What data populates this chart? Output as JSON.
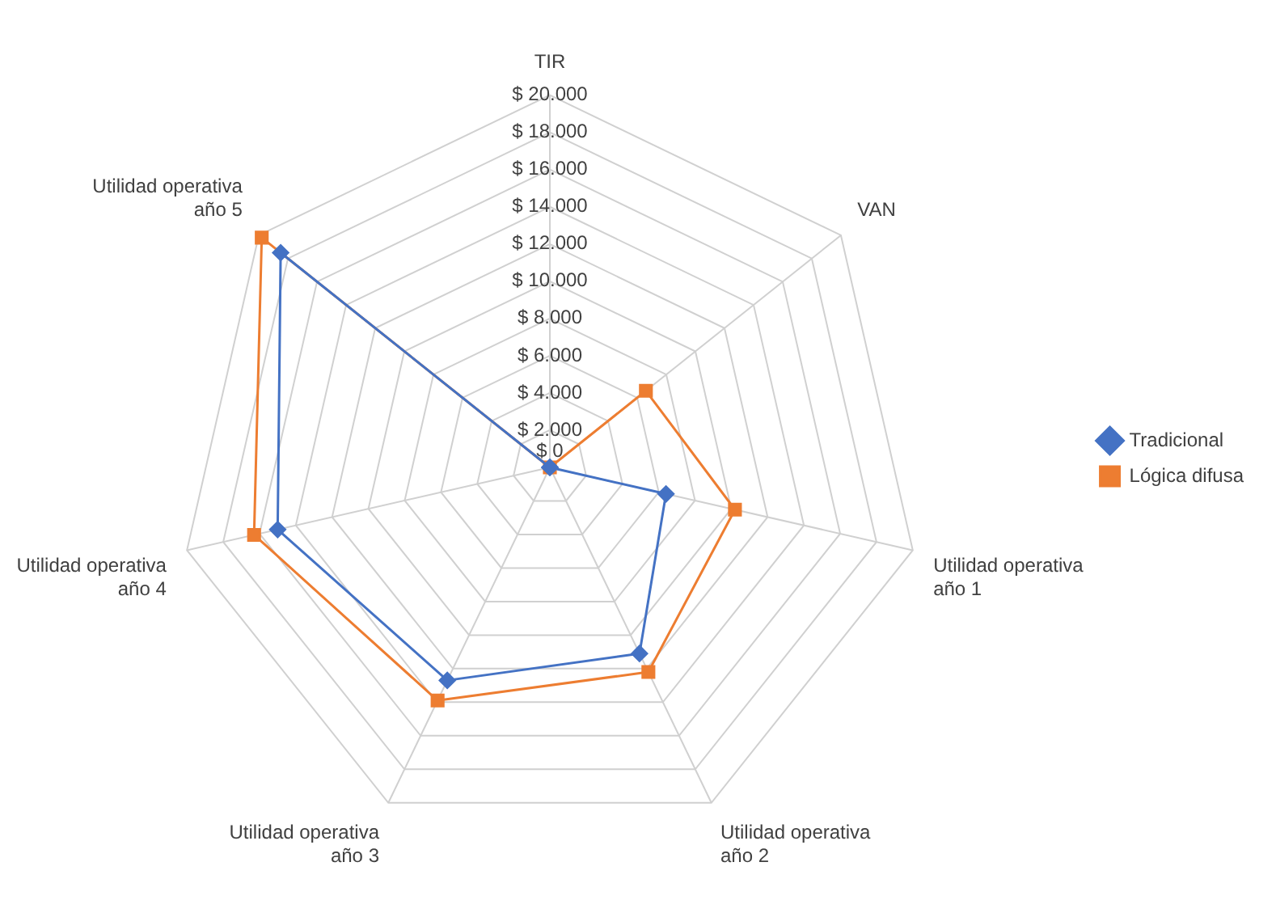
{
  "chart_data": {
    "type": "radar",
    "categories": [
      "TIR",
      "VAN",
      "Utilidad operativa año 1",
      "Utilidad operativa año 2",
      "Utilidad operativa año 3",
      "Utilidad operativa año 4",
      "Utilidad operativa año 5"
    ],
    "series": [
      {
        "name": "Tradicional",
        "color": "#4472c4",
        "marker": "diamond",
        "values": [
          0,
          0,
          6400,
          11100,
          12700,
          15000,
          18500
        ]
      },
      {
        "name": "Lógica difusa",
        "color": "#ed7d31",
        "marker": "square",
        "values": [
          0,
          6600,
          10200,
          12200,
          13900,
          16300,
          19800
        ]
      }
    ],
    "ylim": [
      0,
      20000
    ],
    "yticks": [
      {
        "value": 0,
        "label": "$ 0"
      },
      {
        "value": 2000,
        "label": "$ 2.000"
      },
      {
        "value": 4000,
        "label": "$ 4.000"
      },
      {
        "value": 6000,
        "label": "$ 6.000"
      },
      {
        "value": 8000,
        "label": "$ 8.000"
      },
      {
        "value": 10000,
        "label": "$ 10.000"
      },
      {
        "value": 12000,
        "label": "$ 12.000"
      },
      {
        "value": 14000,
        "label": "$ 14.000"
      },
      {
        "value": 16000,
        "label": "$ 16.000"
      },
      {
        "value": 18000,
        "label": "$ 18.000"
      },
      {
        "value": 20000,
        "label": "$ 20.000"
      }
    ],
    "grid": true,
    "legend": "right",
    "line_style": "solid"
  }
}
